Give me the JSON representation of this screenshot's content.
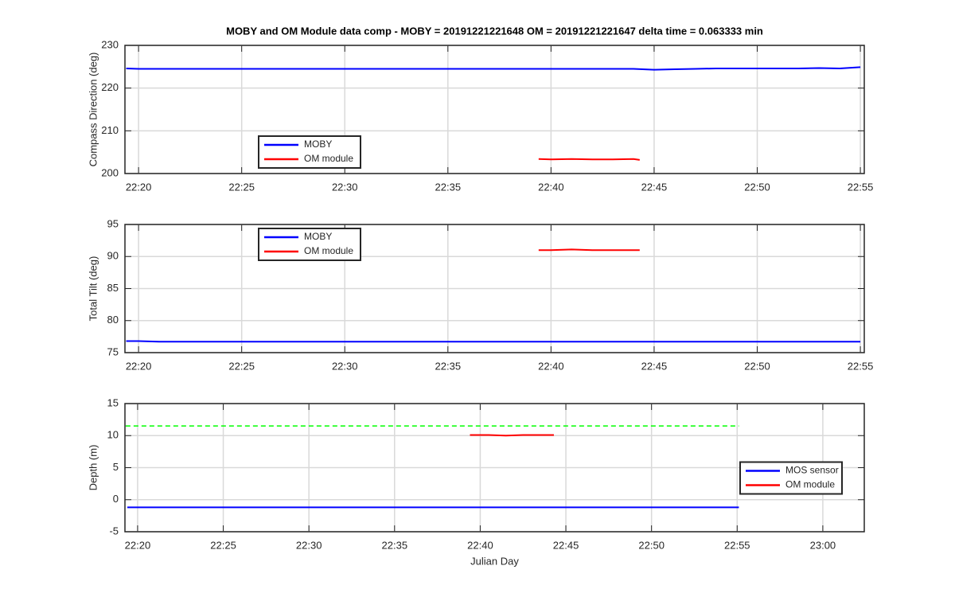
{
  "chart_data": [
    {
      "type": "line",
      "title": "MOBY and OM Module data comp - MOBY = 20191221221648 OM = 20191221221647 delta time = 0.063333 min",
      "y_label": "Compass Direction (deg)",
      "xlim": [
        1339.34,
        1375.19
      ],
      "ylim": [
        200,
        230
      ],
      "xticks": [
        {
          "value": 1340,
          "label": "22:20"
        },
        {
          "value": 1345,
          "label": "22:25"
        },
        {
          "value": 1350,
          "label": "22:30"
        },
        {
          "value": 1355,
          "label": "22:35"
        },
        {
          "value": 1360,
          "label": "22:40"
        },
        {
          "value": 1365,
          "label": "22:45"
        },
        {
          "value": 1370,
          "label": "22:50"
        },
        {
          "value": 1375,
          "label": "22:55"
        }
      ],
      "yticks": [
        200,
        210,
        220,
        230
      ],
      "grid": true,
      "legend_location": "southwest",
      "series": [
        {
          "name": "MOBY",
          "color": "#0000ff",
          "x": [
            1339.4,
            1340,
            1341,
            1342,
            1343,
            1344,
            1345,
            1346,
            1347,
            1348,
            1349,
            1350,
            1351,
            1352,
            1353,
            1354,
            1355,
            1356,
            1357,
            1358,
            1359,
            1360,
            1361,
            1362,
            1363,
            1364,
            1365,
            1366,
            1367,
            1368,
            1369,
            1370,
            1371,
            1372,
            1373,
            1374,
            1375
          ],
          "values": [
            224.6,
            224.5,
            224.5,
            224.5,
            224.5,
            224.5,
            224.5,
            224.5,
            224.5,
            224.5,
            224.5,
            224.5,
            224.5,
            224.5,
            224.5,
            224.5,
            224.5,
            224.5,
            224.5,
            224.5,
            224.5,
            224.5,
            224.5,
            224.5,
            224.5,
            224.5,
            224.3,
            224.4,
            224.5,
            224.6,
            224.6,
            224.6,
            224.6,
            224.6,
            224.7,
            224.6,
            224.9
          ]
        },
        {
          "name": "OM module",
          "color": "#ff0000",
          "x": [
            1359.4,
            1360,
            1361,
            1362,
            1363,
            1364,
            1364.3
          ],
          "values": [
            203.4,
            203.3,
            203.4,
            203.3,
            203.3,
            203.4,
            203.2
          ]
        }
      ]
    },
    {
      "type": "line",
      "y_label": "Total Tilt (deg)",
      "xlim": [
        1339.34,
        1375.19
      ],
      "ylim": [
        75,
        95
      ],
      "xticks": [
        {
          "value": 1340,
          "label": "22:20"
        },
        {
          "value": 1345,
          "label": "22:25"
        },
        {
          "value": 1350,
          "label": "22:30"
        },
        {
          "value": 1355,
          "label": "22:35"
        },
        {
          "value": 1360,
          "label": "22:40"
        },
        {
          "value": 1365,
          "label": "22:45"
        },
        {
          "value": 1370,
          "label": "22:50"
        },
        {
          "value": 1375,
          "label": "22:55"
        }
      ],
      "yticks": [
        75,
        80,
        85,
        90,
        95
      ],
      "grid": true,
      "legend_location": "northwest",
      "series": [
        {
          "name": "MOBY",
          "color": "#0000ff",
          "x": [
            1339.4,
            1340,
            1341,
            1342,
            1343,
            1344,
            1345,
            1346,
            1347,
            1348,
            1349,
            1350,
            1351,
            1352,
            1353,
            1354,
            1355,
            1356,
            1357,
            1358,
            1359,
            1360,
            1361,
            1362,
            1363,
            1364,
            1365,
            1366,
            1367,
            1368,
            1369,
            1370,
            1371,
            1372,
            1373,
            1374,
            1375
          ],
          "values": [
            76.8,
            76.8,
            76.7,
            76.7,
            76.7,
            76.7,
            76.7,
            76.7,
            76.7,
            76.7,
            76.7,
            76.7,
            76.7,
            76.7,
            76.7,
            76.7,
            76.7,
            76.7,
            76.7,
            76.7,
            76.7,
            76.7,
            76.7,
            76.7,
            76.7,
            76.7,
            76.7,
            76.7,
            76.7,
            76.7,
            76.7,
            76.7,
            76.7,
            76.7,
            76.7,
            76.7,
            76.7
          ]
        },
        {
          "name": "OM module",
          "color": "#ff0000",
          "x": [
            1359.4,
            1360,
            1361,
            1362,
            1363,
            1364,
            1364.3
          ],
          "values": [
            91.0,
            91.0,
            91.1,
            91.0,
            91.0,
            91.0,
            91.0
          ]
        }
      ]
    },
    {
      "type": "line",
      "y_label": "Depth (m)",
      "x_label": "Julian Day",
      "xlim": [
        1339.26,
        1382.42
      ],
      "ylim": [
        -5,
        15
      ],
      "xticks": [
        {
          "value": 1340,
          "label": "22:20"
        },
        {
          "value": 1345,
          "label": "22:25"
        },
        {
          "value": 1350,
          "label": "22:30"
        },
        {
          "value": 1355,
          "label": "22:35"
        },
        {
          "value": 1360,
          "label": "22:40"
        },
        {
          "value": 1365,
          "label": "22:45"
        },
        {
          "value": 1370,
          "label": "22:50"
        },
        {
          "value": 1375,
          "label": "22:55"
        },
        {
          "value": 1380,
          "label": "23:00"
        }
      ],
      "yticks": [
        -5,
        0,
        5,
        10,
        15
      ],
      "grid": true,
      "legend_location": "east",
      "series": [
        {
          "name": "MOS sensor",
          "color": "#0000ff",
          "x": [
            1339.4,
            1340,
            1341,
            1342,
            1343,
            1344,
            1345,
            1346,
            1347,
            1348,
            1349,
            1350,
            1351,
            1352,
            1353,
            1354,
            1355,
            1356,
            1357,
            1358,
            1359,
            1360,
            1361,
            1362,
            1363,
            1364,
            1365,
            1366,
            1367,
            1368,
            1369,
            1370,
            1371,
            1372,
            1373,
            1374,
            1375.1
          ],
          "values": [
            -1.2,
            -1.2,
            -1.2,
            -1.2,
            -1.2,
            -1.2,
            -1.2,
            -1.2,
            -1.2,
            -1.2,
            -1.2,
            -1.2,
            -1.2,
            -1.2,
            -1.2,
            -1.2,
            -1.2,
            -1.2,
            -1.2,
            -1.2,
            -1.2,
            -1.2,
            -1.2,
            -1.2,
            -1.2,
            -1.2,
            -1.2,
            -1.2,
            -1.2,
            -1.2,
            -1.2,
            -1.2,
            -1.2,
            -1.2,
            -1.2,
            -1.2,
            -1.2
          ]
        },
        {
          "name": "OM module",
          "color": "#ff0000",
          "x": [
            1359.4,
            1360.5,
            1361.5,
            1362.5,
            1363.5,
            1364.3
          ],
          "values": [
            10.1,
            10.1,
            10.0,
            10.1,
            10.1,
            10.1
          ]
        },
        {
          "color": "#00ff00",
          "dashed": true,
          "x": [
            1339.3,
            1375.1
          ],
          "values": [
            11.5,
            11.5
          ]
        }
      ]
    }
  ]
}
